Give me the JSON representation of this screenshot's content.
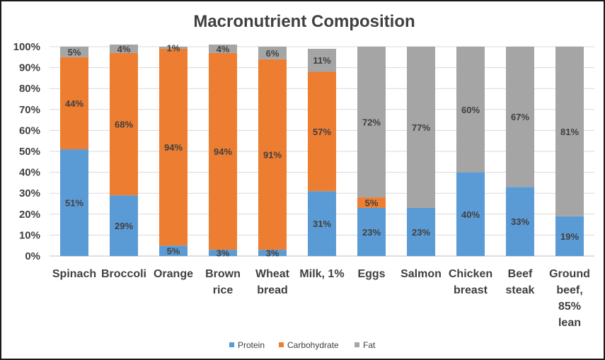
{
  "chart_data": {
    "type": "bar",
    "stacked": true,
    "percent": true,
    "title": "Macronutrient Composition",
    "categories": [
      [
        "Spinach"
      ],
      [
        "Broccoli"
      ],
      [
        "Orange"
      ],
      [
        "Brown",
        "rice"
      ],
      [
        "Wheat",
        "bread"
      ],
      [
        "Milk, 1%"
      ],
      [
        "Eggs"
      ],
      [
        "Salmon"
      ],
      [
        "Chicken",
        "breast"
      ],
      [
        "Beef",
        "steak"
      ],
      [
        "Ground",
        "beef,",
        "85%",
        "lean"
      ]
    ],
    "series": [
      {
        "name": "Protein",
        "color": "#5b9bd5",
        "values": [
          51,
          29,
          5,
          3,
          3,
          31,
          23,
          23,
          40,
          33,
          19
        ]
      },
      {
        "name": "Carbohydrate",
        "color": "#ed7d31",
        "values": [
          44,
          68,
          94,
          94,
          91,
          57,
          5,
          0,
          0,
          0,
          0
        ]
      },
      {
        "name": "Fat",
        "color": "#a5a5a5",
        "values": [
          5,
          4,
          1,
          4,
          6,
          11,
          72,
          77,
          60,
          67,
          81
        ]
      }
    ],
    "data_labels": [
      [
        "51%",
        "29%",
        "5%",
        "3%",
        "3%",
        "31%",
        "23%",
        "23%",
        "40%",
        "33%",
        "19%"
      ],
      [
        "44%",
        "68%",
        "94%",
        "94%",
        "91%",
        "57%",
        "5%",
        "",
        "",
        "",
        ""
      ],
      [
        "5%",
        "4%",
        "1%",
        "4%",
        "6%",
        "11%",
        "72%",
        "77%",
        "60%",
        "67%",
        "81%"
      ]
    ],
    "yticks": [
      "0%",
      "10%",
      "20%",
      "30%",
      "40%",
      "50%",
      "60%",
      "70%",
      "80%",
      "90%",
      "100%"
    ],
    "ylim": [
      0,
      100
    ],
    "grid": true,
    "legend": "bottom"
  }
}
